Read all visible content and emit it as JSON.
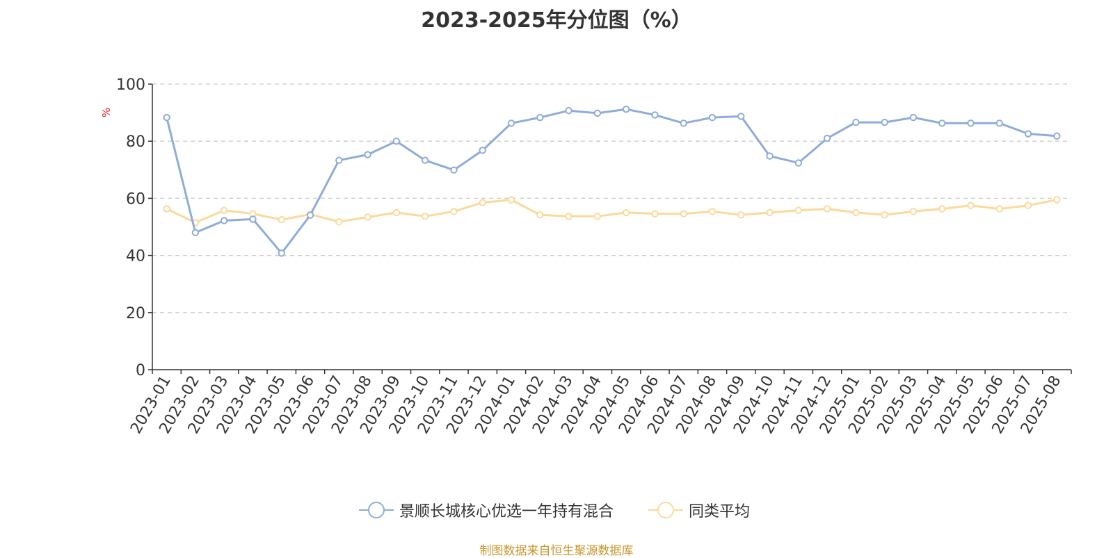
{
  "title": "2023-2025年分位图（%）",
  "credit": "制图数据来自恒生聚源数据库",
  "chart_data": {
    "type": "line",
    "title": "2023-2025年分位图（%）",
    "ylabel": "%",
    "xlabel": "",
    "ylim": [
      0,
      100
    ],
    "yticks": [
      0,
      20,
      40,
      60,
      80,
      100
    ],
    "grid": true,
    "legend_position": "bottom-center",
    "categories": [
      "2023-01",
      "2023-02",
      "2023-03",
      "2023-04",
      "2023-05",
      "2023-06",
      "2023-07",
      "2023-08",
      "2023-09",
      "2023-10",
      "2023-11",
      "2023-12",
      "2024-01",
      "2024-02",
      "2024-03",
      "2024-04",
      "2024-05",
      "2024-06",
      "2024-07",
      "2024-08",
      "2024-09",
      "2024-10",
      "2024-11",
      "2024-12",
      "2025-01",
      "2025-02",
      "2025-03",
      "2025-04",
      "2025-05",
      "2025-06",
      "2025-07",
      "2025-08"
    ],
    "series": [
      {
        "name": "景顺长城核心优选一年持有混合",
        "color": "#8eacd9",
        "values": [
          88.3,
          48.0,
          52.2,
          52.7,
          40.8,
          54.1,
          73.3,
          75.3,
          80.0,
          73.3,
          69.9,
          76.8,
          86.3,
          88.3,
          90.7,
          89.8,
          91.2,
          89.2,
          86.3,
          88.3,
          88.7,
          74.8,
          72.4,
          81.0,
          86.6,
          86.6,
          88.3,
          86.3,
          86.3,
          86.3,
          82.6,
          81.8
        ]
      },
      {
        "name": "同类平均",
        "color": "#fbd99a",
        "values": [
          56.3,
          51.5,
          55.8,
          54.6,
          52.5,
          54.4,
          51.8,
          53.4,
          55.0,
          53.7,
          55.4,
          58.5,
          59.5,
          54.2,
          53.7,
          53.7,
          55.0,
          54.6,
          54.6,
          55.4,
          54.2,
          55.0,
          55.8,
          56.3,
          55.0,
          54.2,
          55.4,
          56.3,
          57.5,
          56.3,
          57.5,
          59.5
        ]
      }
    ]
  }
}
